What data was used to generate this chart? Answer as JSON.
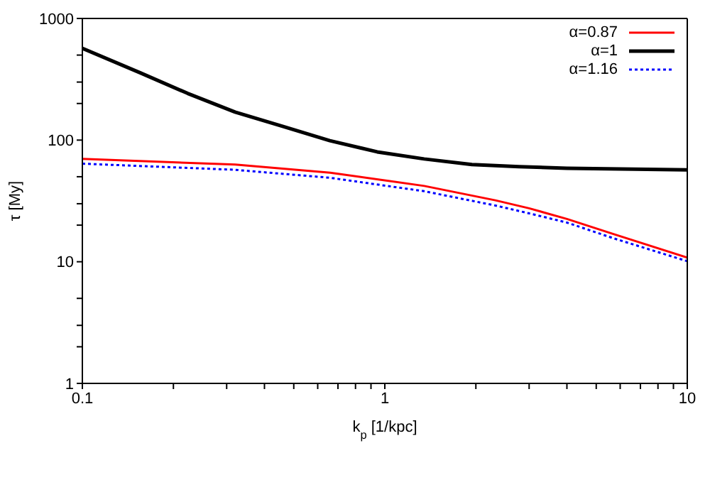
{
  "chart_data": {
    "type": "line",
    "xlabel": "k$_{p}$ [1/kpc]",
    "ylabel": "τ [My]",
    "log": "xy",
    "legend": "top right",
    "marker": "none",
    "xlim": [
      0.1,
      10
    ],
    "xticks": [
      0.1,
      {
        "value": 0.2,
        "label": null
      },
      {
        "value": 0.3,
        "label": null
      },
      {
        "value": 0.4,
        "label": null
      },
      {
        "value": 0.5,
        "label": null
      },
      {
        "value": 0.6,
        "label": null
      },
      {
        "value": 0.7,
        "label": null
      },
      {
        "value": 0.8,
        "label": null
      },
      {
        "value": 0.9,
        "label": null
      },
      1,
      {
        "value": 2,
        "label": null
      },
      {
        "value": 3,
        "label": null
      },
      {
        "value": 4,
        "label": null
      },
      {
        "value": 5,
        "label": null
      },
      {
        "value": 6,
        "label": null
      },
      {
        "value": 7,
        "label": null
      },
      {
        "value": 8,
        "label": null
      },
      {
        "value": 9,
        "label": null
      },
      10
    ],
    "ylim": [
      1,
      1000
    ],
    "yticks": [
      1,
      {
        "value": 2,
        "label": null
      },
      {
        "value": 3,
        "label": null
      },
      {
        "value": 5,
        "label": null
      },
      10,
      {
        "value": 20,
        "label": null
      },
      {
        "value": 30,
        "label": null
      },
      {
        "value": 50,
        "label": null
      },
      100,
      {
        "value": 200,
        "label": null
      },
      {
        "value": 300,
        "label": null
      },
      {
        "value": 500,
        "label": null
      },
      1000
    ],
    "series": [
      {
        "name": "α=0.87",
        "color": "#ff0000",
        "line_style": "solid",
        "x": [
          0.1,
          0.32,
          0.66,
          1.35,
          2.32,
          3,
          4,
          5.7,
          10
        ],
        "values": [
          70,
          63,
          54,
          42,
          32,
          27.5,
          22.5,
          16.9,
          10.8
        ]
      },
      {
        "name": "α=1",
        "color": "#000000",
        "line_style": "solid",
        "x": [
          0.1,
          0.156,
          0.223,
          0.32,
          0.459,
          0.658,
          0.944,
          1.35,
          1.94,
          2.78,
          4,
          10
        ],
        "values": [
          568,
          356,
          242,
          170,
          130,
          99,
          80,
          70,
          63,
          60.5,
          58.7,
          57
        ]
      },
      {
        "name": "α=1.16",
        "color": "#0000ff",
        "line_style": "dotted",
        "x": [
          0.1,
          0.32,
          0.66,
          1.35,
          2.32,
          3,
          4,
          5.7,
          10
        ],
        "values": [
          64,
          57,
          49,
          38,
          29,
          25,
          21,
          15.6,
          10.1
        ]
      }
    ]
  }
}
